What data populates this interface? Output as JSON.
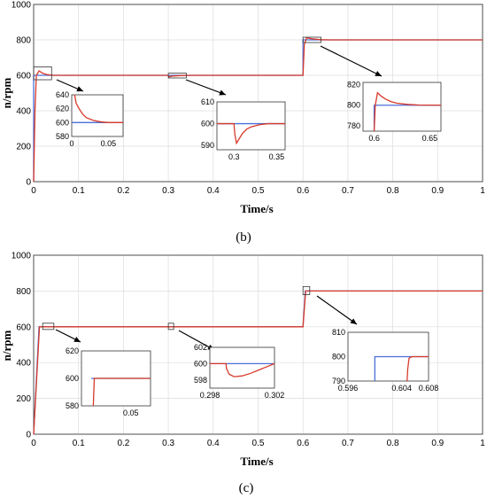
{
  "chart_data": [
    {
      "type": "line",
      "panel_label": "(b)",
      "xlabel": "Time/s",
      "ylabel": "n/rpm",
      "xlim": [
        0,
        1
      ],
      "ylim": [
        0,
        1000
      ],
      "x_ticks": [
        "0",
        "0.1",
        "0.2",
        "0.3",
        "0.4",
        "0.5",
        "0.6",
        "0.7",
        "0.8",
        "0.9",
        "1"
      ],
      "y_ticks": [
        "0",
        "200",
        "400",
        "600",
        "800",
        "1000"
      ],
      "grid": true,
      "series": [
        {
          "role": "reference",
          "color": "#4a6fd8",
          "x": [
            0,
            0,
            0.6,
            0.6,
            1
          ],
          "y": [
            0,
            600,
            600,
            800,
            800
          ]
        },
        {
          "role": "actual",
          "color": "#d83a2a",
          "x": [
            0,
            0.003,
            0.006,
            0.012,
            0.02,
            0.03,
            0.045,
            0.06,
            0.3,
            0.302,
            0.31,
            0.33,
            0.36,
            0.6,
            0.603,
            0.608,
            0.62,
            0.64,
            0.66,
            1
          ],
          "y": [
            0,
            400,
            600,
            625,
            612,
            604,
            600,
            600,
            600,
            591,
            596,
            599,
            600,
            600,
            775,
            812,
            806,
            801,
            800,
            800
          ]
        }
      ],
      "insets": [
        {
          "xlim": [
            0,
            0.07
          ],
          "ylim": [
            580,
            640
          ],
          "x_ticks": [
            "0",
            "0.05"
          ],
          "y_ticks": [
            "580",
            "600",
            "620",
            "640"
          ],
          "zoom_region": [
            0,
            0.04,
            575,
            648
          ],
          "ref": {
            "x": [
              0,
              0.07
            ],
            "y": [
              600,
              600
            ]
          },
          "act": {
            "x": [
              0.004,
              0.006,
              0.01,
              0.015,
              0.02,
              0.03,
              0.04,
              0.05,
              0.07
            ],
            "y": [
              640,
              628,
              620,
              612,
              607,
              603,
              601,
              600,
              600
            ]
          }
        },
        {
          "xlim": [
            0.28,
            0.36
          ],
          "ylim": [
            588,
            610
          ],
          "x_ticks": [
            "0.3",
            "0.35"
          ],
          "y_ticks": [
            "590",
            "600",
            "610"
          ],
          "zoom_region": [
            0.3,
            0.34,
            585,
            612
          ],
          "ref": {
            "x": [
              0.28,
              0.36
            ],
            "y": [
              600,
              600
            ]
          },
          "act": {
            "x": [
              0.28,
              0.3,
              0.301,
              0.303,
              0.306,
              0.31,
              0.315,
              0.32,
              0.33,
              0.34,
              0.36
            ],
            "y": [
              600,
              600,
              595,
              591,
              593,
              595.5,
              597.5,
              598.5,
              599.5,
              600,
              600
            ]
          }
        },
        {
          "xlim": [
            0.59,
            0.66
          ],
          "ylim": [
            775,
            822
          ],
          "x_ticks": [
            "0.6",
            "0.65"
          ],
          "y_ticks": [
            "780",
            "800",
            "820"
          ],
          "zoom_region": [
            0.6,
            0.64,
            785,
            815
          ],
          "ref": {
            "x": [
              0.6,
              0.6,
              0.66
            ],
            "y": [
              775,
              800,
              800
            ]
          },
          "act": {
            "x": [
              0.6,
              0.601,
              0.603,
              0.606,
              0.61,
              0.615,
              0.62,
              0.63,
              0.64,
              0.66
            ],
            "y": [
              775,
              800,
              812,
              809,
              806,
              803.5,
              802,
              800.8,
              800.2,
              800
            ]
          }
        }
      ]
    },
    {
      "type": "line",
      "panel_label": "(c)",
      "xlabel": "Time/s",
      "ylabel": "n/rpm",
      "xlim": [
        0,
        1
      ],
      "ylim": [
        0,
        1000
      ],
      "x_ticks": [
        "0",
        "0.1",
        "0.2",
        "0.3",
        "0.4",
        "0.5",
        "0.6",
        "0.7",
        "0.8",
        "0.9",
        "1"
      ],
      "y_ticks": [
        "0",
        "200",
        "400",
        "600",
        "800",
        "1000"
      ],
      "grid": true,
      "series": [
        {
          "role": "reference",
          "color": "#4a6fd8",
          "x": [
            0,
            0.012,
            0.6,
            0.605,
            1
          ],
          "y": [
            0,
            600,
            600,
            800,
            800
          ]
        },
        {
          "role": "actual",
          "color": "#d83a2a",
          "x": [
            0,
            0.013,
            0.3,
            0.301,
            0.302,
            0.6,
            0.606,
            1
          ],
          "y": [
            0,
            600,
            600,
            598.5,
            600,
            600,
            800,
            800
          ]
        }
      ],
      "insets": [
        {
          "xlim": [
            0,
            0.07
          ],
          "ylim": [
            580,
            620
          ],
          "x_ticks": [
            "0.05"
          ],
          "y_ticks": [
            "580",
            "600",
            "620"
          ],
          "zoom_region": [
            0.02,
            0.045,
            585,
            620
          ],
          "ref": {
            "x": [
              0.01,
              0.07
            ],
            "y": [
              600,
              600
            ]
          },
          "act": {
            "x": [
              0.012,
              0.013,
              0.07
            ],
            "y": [
              580,
              600,
              600
            ]
          }
        },
        {
          "xlim": [
            0.298,
            0.302
          ],
          "ylim": [
            597,
            602
          ],
          "x_ticks": [
            "0.298",
            "0.302"
          ],
          "y_ticks": [
            "598",
            "600",
            "602"
          ],
          "zoom_region": [
            0.3,
            0.312,
            585,
            620
          ],
          "ref": {
            "x": [
              0.298,
              0.302
            ],
            "y": [
              600,
              600
            ]
          },
          "act": {
            "x": [
              0.298,
              0.299,
              0.29903,
              0.2992,
              0.2995,
              0.3,
              0.3005,
              0.301,
              0.3015,
              0.302
            ],
            "y": [
              600,
              600,
              599.4,
              598.7,
              598.4,
              598.5,
              598.8,
              599.2,
              599.6,
              600
            ]
          }
        },
        {
          "xlim": [
            0.596,
            0.608
          ],
          "ylim": [
            790,
            810
          ],
          "x_ticks": [
            "0.596",
            "0.604",
            "0.608"
          ],
          "y_ticks": [
            "790",
            "800",
            "810"
          ],
          "zoom_region": [
            0.6,
            0.615,
            780,
            825
          ],
          "ref": {
            "x": [
              0.6,
              0.6,
              0.608
            ],
            "y": [
              790,
              800,
              800
            ]
          },
          "act": {
            "x": [
              0.6048,
              0.6049,
              0.6051,
              0.6055,
              0.608
            ],
            "y": [
              790,
              795,
              799.4,
              800,
              800
            ]
          }
        }
      ]
    }
  ]
}
